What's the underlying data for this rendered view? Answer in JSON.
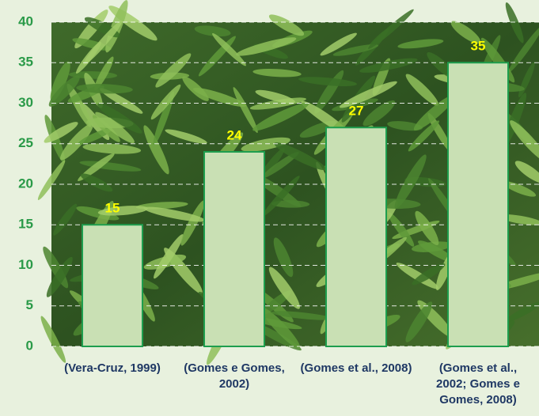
{
  "chart_data": {
    "type": "bar",
    "categories": [
      "(Vera-Cruz, 1999)",
      "(Gomes e Gomes, 2002)",
      "(Gomes et al., 2008)",
      "(Gomes et al., 2002; Gomes e Gomes, 2008)"
    ],
    "values": [
      15,
      24,
      27,
      35
    ],
    "color": "#c9e0b4",
    "ylim": [
      0,
      40
    ],
    "yticks": [
      0,
      5,
      10,
      15,
      20,
      25,
      30,
      35,
      40
    ],
    "grid": true
  }
}
